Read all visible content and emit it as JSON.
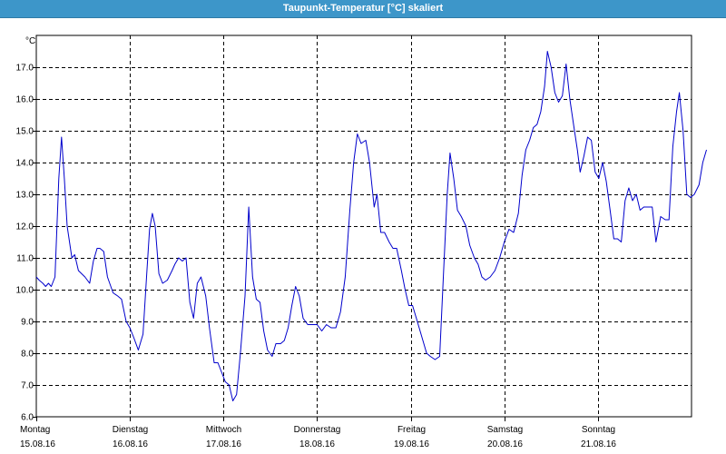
{
  "window": {
    "title": "Taupunkt-Temperatur [°C] skaliert"
  },
  "chart_data": {
    "type": "line",
    "title": "Taupunkt-Temperatur [°C] skaliert",
    "ylabel": "°C",
    "xlabel": "",
    "ylim": [
      6.0,
      18.0
    ],
    "y_ticks": [
      "6.0",
      "7.0",
      "8.0",
      "9.0",
      "10.0",
      "11.0",
      "12.0",
      "13.0",
      "14.0",
      "15.0",
      "16.0",
      "17.0"
    ],
    "xlim": [
      0,
      7
    ],
    "grid": true,
    "x_ticks": [
      {
        "x": 0,
        "day": "Montag",
        "date": "15.08.16"
      },
      {
        "x": 1,
        "day": "Dienstag",
        "date": "16.08.16"
      },
      {
        "x": 2,
        "day": "Mittwoch",
        "date": "17.08.16"
      },
      {
        "x": 3,
        "day": "Donnerstag",
        "date": "18.08.16"
      },
      {
        "x": 4,
        "day": "Freitag",
        "date": "19.08.16"
      },
      {
        "x": 5,
        "day": "Samstag",
        "date": "20.08.16"
      },
      {
        "x": 6,
        "day": "Sonntag",
        "date": "21.08.16"
      }
    ],
    "series": [
      {
        "color": "#0000cc",
        "points": [
          [
            0.0,
            10.4
          ],
          [
            0.03,
            10.3
          ],
          [
            0.07,
            10.2
          ],
          [
            0.1,
            10.1
          ],
          [
            0.13,
            10.2
          ],
          [
            0.16,
            10.1
          ],
          [
            0.2,
            10.4
          ],
          [
            0.24,
            13.5
          ],
          [
            0.27,
            14.8
          ],
          [
            0.3,
            13.5
          ],
          [
            0.33,
            12.0
          ],
          [
            0.38,
            11.0
          ],
          [
            0.41,
            11.1
          ],
          [
            0.45,
            10.6
          ],
          [
            0.52,
            10.4
          ],
          [
            0.57,
            10.2
          ],
          [
            0.61,
            10.9
          ],
          [
            0.65,
            11.3
          ],
          [
            0.68,
            11.3
          ],
          [
            0.72,
            11.2
          ],
          [
            0.76,
            10.4
          ],
          [
            0.82,
            9.9
          ],
          [
            0.87,
            9.8
          ],
          [
            0.91,
            9.7
          ],
          [
            0.96,
            9.0
          ],
          [
            1.0,
            8.8
          ],
          [
            1.04,
            8.5
          ],
          [
            1.09,
            8.1
          ],
          [
            1.14,
            8.6
          ],
          [
            1.18,
            10.5
          ],
          [
            1.21,
            11.9
          ],
          [
            1.24,
            12.4
          ],
          [
            1.27,
            12.0
          ],
          [
            1.31,
            10.5
          ],
          [
            1.35,
            10.2
          ],
          [
            1.4,
            10.3
          ],
          [
            1.45,
            10.6
          ],
          [
            1.48,
            10.8
          ],
          [
            1.52,
            11.0
          ],
          [
            1.56,
            10.9
          ],
          [
            1.6,
            11.0
          ],
          [
            1.64,
            9.6
          ],
          [
            1.68,
            9.1
          ],
          [
            1.72,
            10.2
          ],
          [
            1.76,
            10.4
          ],
          [
            1.81,
            9.8
          ],
          [
            1.85,
            8.8
          ],
          [
            1.9,
            7.7
          ],
          [
            1.94,
            7.7
          ],
          [
            1.98,
            7.4
          ],
          [
            2.02,
            7.1
          ],
          [
            2.06,
            7.0
          ],
          [
            2.1,
            6.5
          ],
          [
            2.14,
            6.7
          ],
          [
            2.18,
            8.0
          ],
          [
            2.23,
            9.8
          ],
          [
            2.27,
            12.6
          ],
          [
            2.31,
            10.4
          ],
          [
            2.35,
            9.7
          ],
          [
            2.39,
            9.6
          ],
          [
            2.43,
            8.7
          ],
          [
            2.47,
            8.1
          ],
          [
            2.52,
            7.9
          ],
          [
            2.56,
            8.3
          ],
          [
            2.61,
            8.3
          ],
          [
            2.65,
            8.4
          ],
          [
            2.69,
            8.8
          ],
          [
            2.73,
            9.5
          ],
          [
            2.77,
            10.1
          ],
          [
            2.81,
            9.8
          ],
          [
            2.85,
            9.1
          ],
          [
            2.9,
            8.9
          ],
          [
            2.95,
            8.9
          ],
          [
            3.0,
            8.9
          ],
          [
            3.05,
            8.7
          ],
          [
            3.1,
            8.9
          ],
          [
            3.15,
            8.8
          ],
          [
            3.2,
            8.8
          ],
          [
            3.25,
            9.3
          ],
          [
            3.3,
            10.4
          ],
          [
            3.35,
            12.5
          ],
          [
            3.39,
            14.0
          ],
          [
            3.43,
            14.9
          ],
          [
            3.47,
            14.6
          ],
          [
            3.52,
            14.7
          ],
          [
            3.56,
            14.0
          ],
          [
            3.61,
            12.6
          ],
          [
            3.64,
            13.0
          ],
          [
            3.68,
            11.8
          ],
          [
            3.72,
            11.8
          ],
          [
            3.77,
            11.5
          ],
          [
            3.81,
            11.3
          ],
          [
            3.85,
            11.3
          ],
          [
            3.9,
            10.6
          ],
          [
            3.94,
            10.0
          ],
          [
            3.98,
            9.5
          ],
          [
            4.02,
            9.5
          ],
          [
            4.06,
            9.1
          ],
          [
            4.09,
            8.8
          ],
          [
            4.13,
            8.4
          ],
          [
            4.17,
            8.0
          ],
          [
            4.21,
            7.9
          ],
          [
            4.26,
            7.8
          ],
          [
            4.31,
            7.9
          ],
          [
            4.35,
            10.5
          ],
          [
            4.39,
            13.0
          ],
          [
            4.42,
            14.3
          ],
          [
            4.46,
            13.5
          ],
          [
            4.5,
            12.5
          ],
          [
            4.54,
            12.3
          ],
          [
            4.59,
            12.0
          ],
          [
            4.63,
            11.4
          ],
          [
            4.68,
            11.0
          ],
          [
            4.72,
            10.8
          ],
          [
            4.76,
            10.4
          ],
          [
            4.8,
            10.3
          ],
          [
            4.85,
            10.4
          ],
          [
            4.9,
            10.6
          ],
          [
            4.95,
            11.0
          ],
          [
            5.0,
            11.5
          ],
          [
            5.05,
            11.9
          ],
          [
            5.1,
            11.8
          ],
          [
            5.15,
            12.4
          ],
          [
            5.19,
            13.6
          ],
          [
            5.23,
            14.4
          ],
          [
            5.27,
            14.7
          ],
          [
            5.31,
            15.1
          ],
          [
            5.35,
            15.2
          ],
          [
            5.39,
            15.6
          ],
          [
            5.43,
            16.4
          ],
          [
            5.46,
            17.5
          ],
          [
            5.5,
            17.0
          ],
          [
            5.54,
            16.2
          ],
          [
            5.58,
            15.9
          ],
          [
            5.62,
            16.1
          ],
          [
            5.66,
            17.1
          ],
          [
            5.7,
            16.0
          ],
          [
            5.74,
            15.2
          ],
          [
            5.78,
            14.4
          ],
          [
            5.81,
            13.7
          ],
          [
            5.85,
            14.2
          ],
          [
            5.89,
            14.8
          ],
          [
            5.93,
            14.7
          ],
          [
            5.97,
            13.7
          ],
          [
            6.01,
            13.5
          ],
          [
            6.05,
            14.0
          ],
          [
            6.09,
            13.4
          ],
          [
            6.13,
            12.5
          ],
          [
            6.17,
            11.6
          ],
          [
            6.21,
            11.6
          ],
          [
            6.25,
            11.5
          ],
          [
            6.29,
            12.8
          ],
          [
            6.33,
            13.2
          ],
          [
            6.37,
            12.8
          ],
          [
            6.41,
            13.0
          ],
          [
            6.45,
            12.5
          ],
          [
            6.49,
            12.6
          ],
          [
            6.53,
            12.6
          ],
          [
            6.58,
            12.6
          ],
          [
            6.62,
            11.5
          ],
          [
            6.67,
            12.3
          ],
          [
            6.72,
            12.2
          ],
          [
            6.76,
            12.2
          ],
          [
            6.8,
            14.5
          ],
          [
            6.84,
            15.6
          ],
          [
            6.87,
            16.2
          ],
          [
            6.91,
            15.0
          ],
          [
            6.95,
            13.0
          ],
          [
            6.99,
            12.9
          ],
          [
            7.03,
            13.0
          ],
          [
            7.08,
            13.3
          ],
          [
            7.12,
            14.0
          ],
          [
            7.16,
            14.4
          ]
        ]
      }
    ]
  }
}
